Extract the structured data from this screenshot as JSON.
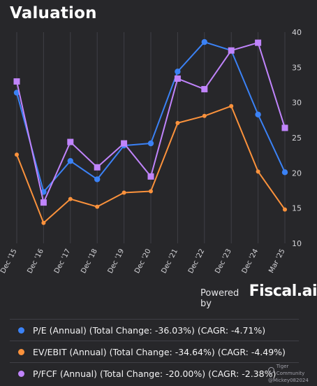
{
  "title": "Valuation",
  "powered_by": {
    "label": "Powered by",
    "brand": "Fiscal.ai"
  },
  "watermark": {
    "community": "Tiger Community",
    "user": "@Mickey082024"
  },
  "chart_data": {
    "type": "line",
    "categories": [
      "Dec '15",
      "Dec '16",
      "Dec '17",
      "Dec '18",
      "Dec '19",
      "Dec '20",
      "Dec '21",
      "Dec '22",
      "Dec '23",
      "Dec '24",
      "Mar '25"
    ],
    "ylim": [
      10,
      40
    ],
    "yticks": [
      10,
      15,
      20,
      25,
      30,
      35,
      40
    ],
    "grid": "vertical",
    "legend": "bottom",
    "series": [
      {
        "name": "P/E (Annual) (Total Change: -36.03%) (CAGR: -4.71%)",
        "color": "#3b82f6",
        "marker": "circle",
        "values": [
          31.4,
          17.3,
          21.7,
          19.1,
          23.9,
          24.2,
          34.4,
          38.6,
          37.4,
          28.3,
          20.1
        ]
      },
      {
        "name": "EV/EBIT (Annual) (Total Change: -34.64%) (CAGR: -4.49%)",
        "color": "#fb923c",
        "marker": "dot",
        "values": [
          22.6,
          12.9,
          16.3,
          15.2,
          17.2,
          17.4,
          27.1,
          28.1,
          29.5,
          20.2,
          14.8
        ]
      },
      {
        "name": "P/FCF (Annual) (Total Change: -20.00%) (CAGR: -2.38%)",
        "color": "#c084fc",
        "marker": "square",
        "values": [
          33.0,
          15.8,
          24.4,
          20.8,
          24.2,
          19.5,
          33.4,
          31.9,
          37.4,
          38.5,
          26.4
        ]
      }
    ]
  }
}
